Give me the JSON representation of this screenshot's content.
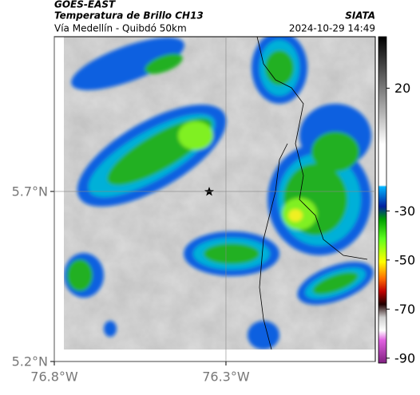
{
  "header": {
    "source": "GOES-EAST",
    "title": "Temperatura de Brillo CH13",
    "subtitle": "Vía Medellín - Quibdó 50km",
    "brand": "SIATA",
    "datetime": "2024-10-29 14:49"
  },
  "map": {
    "latlim": [
      5.2,
      6.155
    ],
    "lonlim": [
      -76.8,
      -75.865
    ],
    "lat_ticks": [
      {
        "value": 5.2,
        "label": "5.2°N"
      },
      {
        "value": 5.7,
        "label": "5.7°N"
      }
    ],
    "lon_ticks": [
      {
        "value": -76.8,
        "label": "76.8°W"
      },
      {
        "value": -76.3,
        "label": "76.3°W"
      }
    ]
  },
  "colorbar": {
    "lim": [
      -92,
      41
    ],
    "ticks": [
      20,
      -30,
      -50,
      -70,
      -90
    ]
  }
}
